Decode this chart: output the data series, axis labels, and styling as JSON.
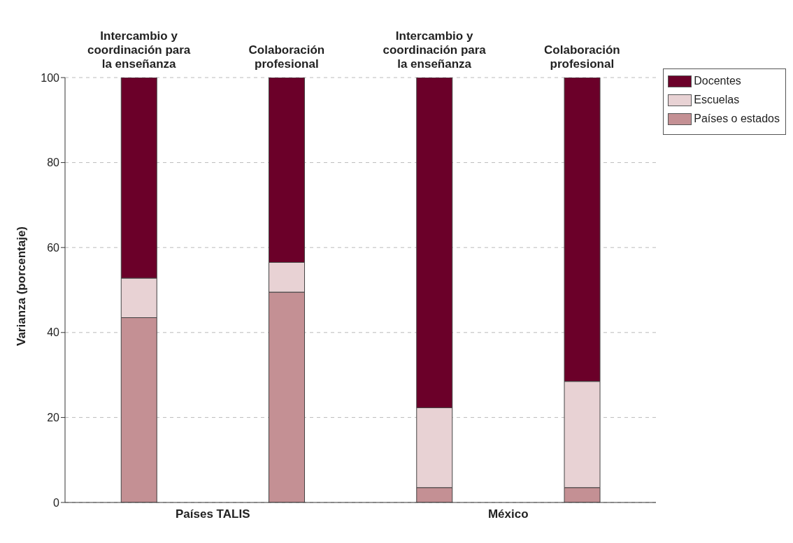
{
  "chart_data": {
    "type": "bar",
    "stacked": true,
    "ylabel": "Varianza (porcentaje)",
    "categories": [
      "Intercambio y coordinación para la enseñanza",
      "Colaboración profesional",
      "Intercambio y coordinación para la enseñanza",
      "Colaboración profesional"
    ],
    "series": [
      {
        "name": "Países o estados",
        "color": "#c49094",
        "values": [
          43.5,
          49.5,
          3.5,
          3.5
        ]
      },
      {
        "name": "Escuelas",
        "color": "#e8d2d4",
        "values": [
          9.3,
          7.0,
          18.8,
          25.0
        ]
      },
      {
        "name": "Docentes",
        "color": "#6b0029",
        "values": [
          47.2,
          43.5,
          77.7,
          71.5
        ]
      }
    ],
    "ylim": [
      0,
      100
    ],
    "yticks": [
      0,
      20,
      40,
      60,
      80,
      100
    ],
    "grid": "y",
    "legend": "top right",
    "annotations": [
      "Países TALIS",
      "México"
    ]
  }
}
